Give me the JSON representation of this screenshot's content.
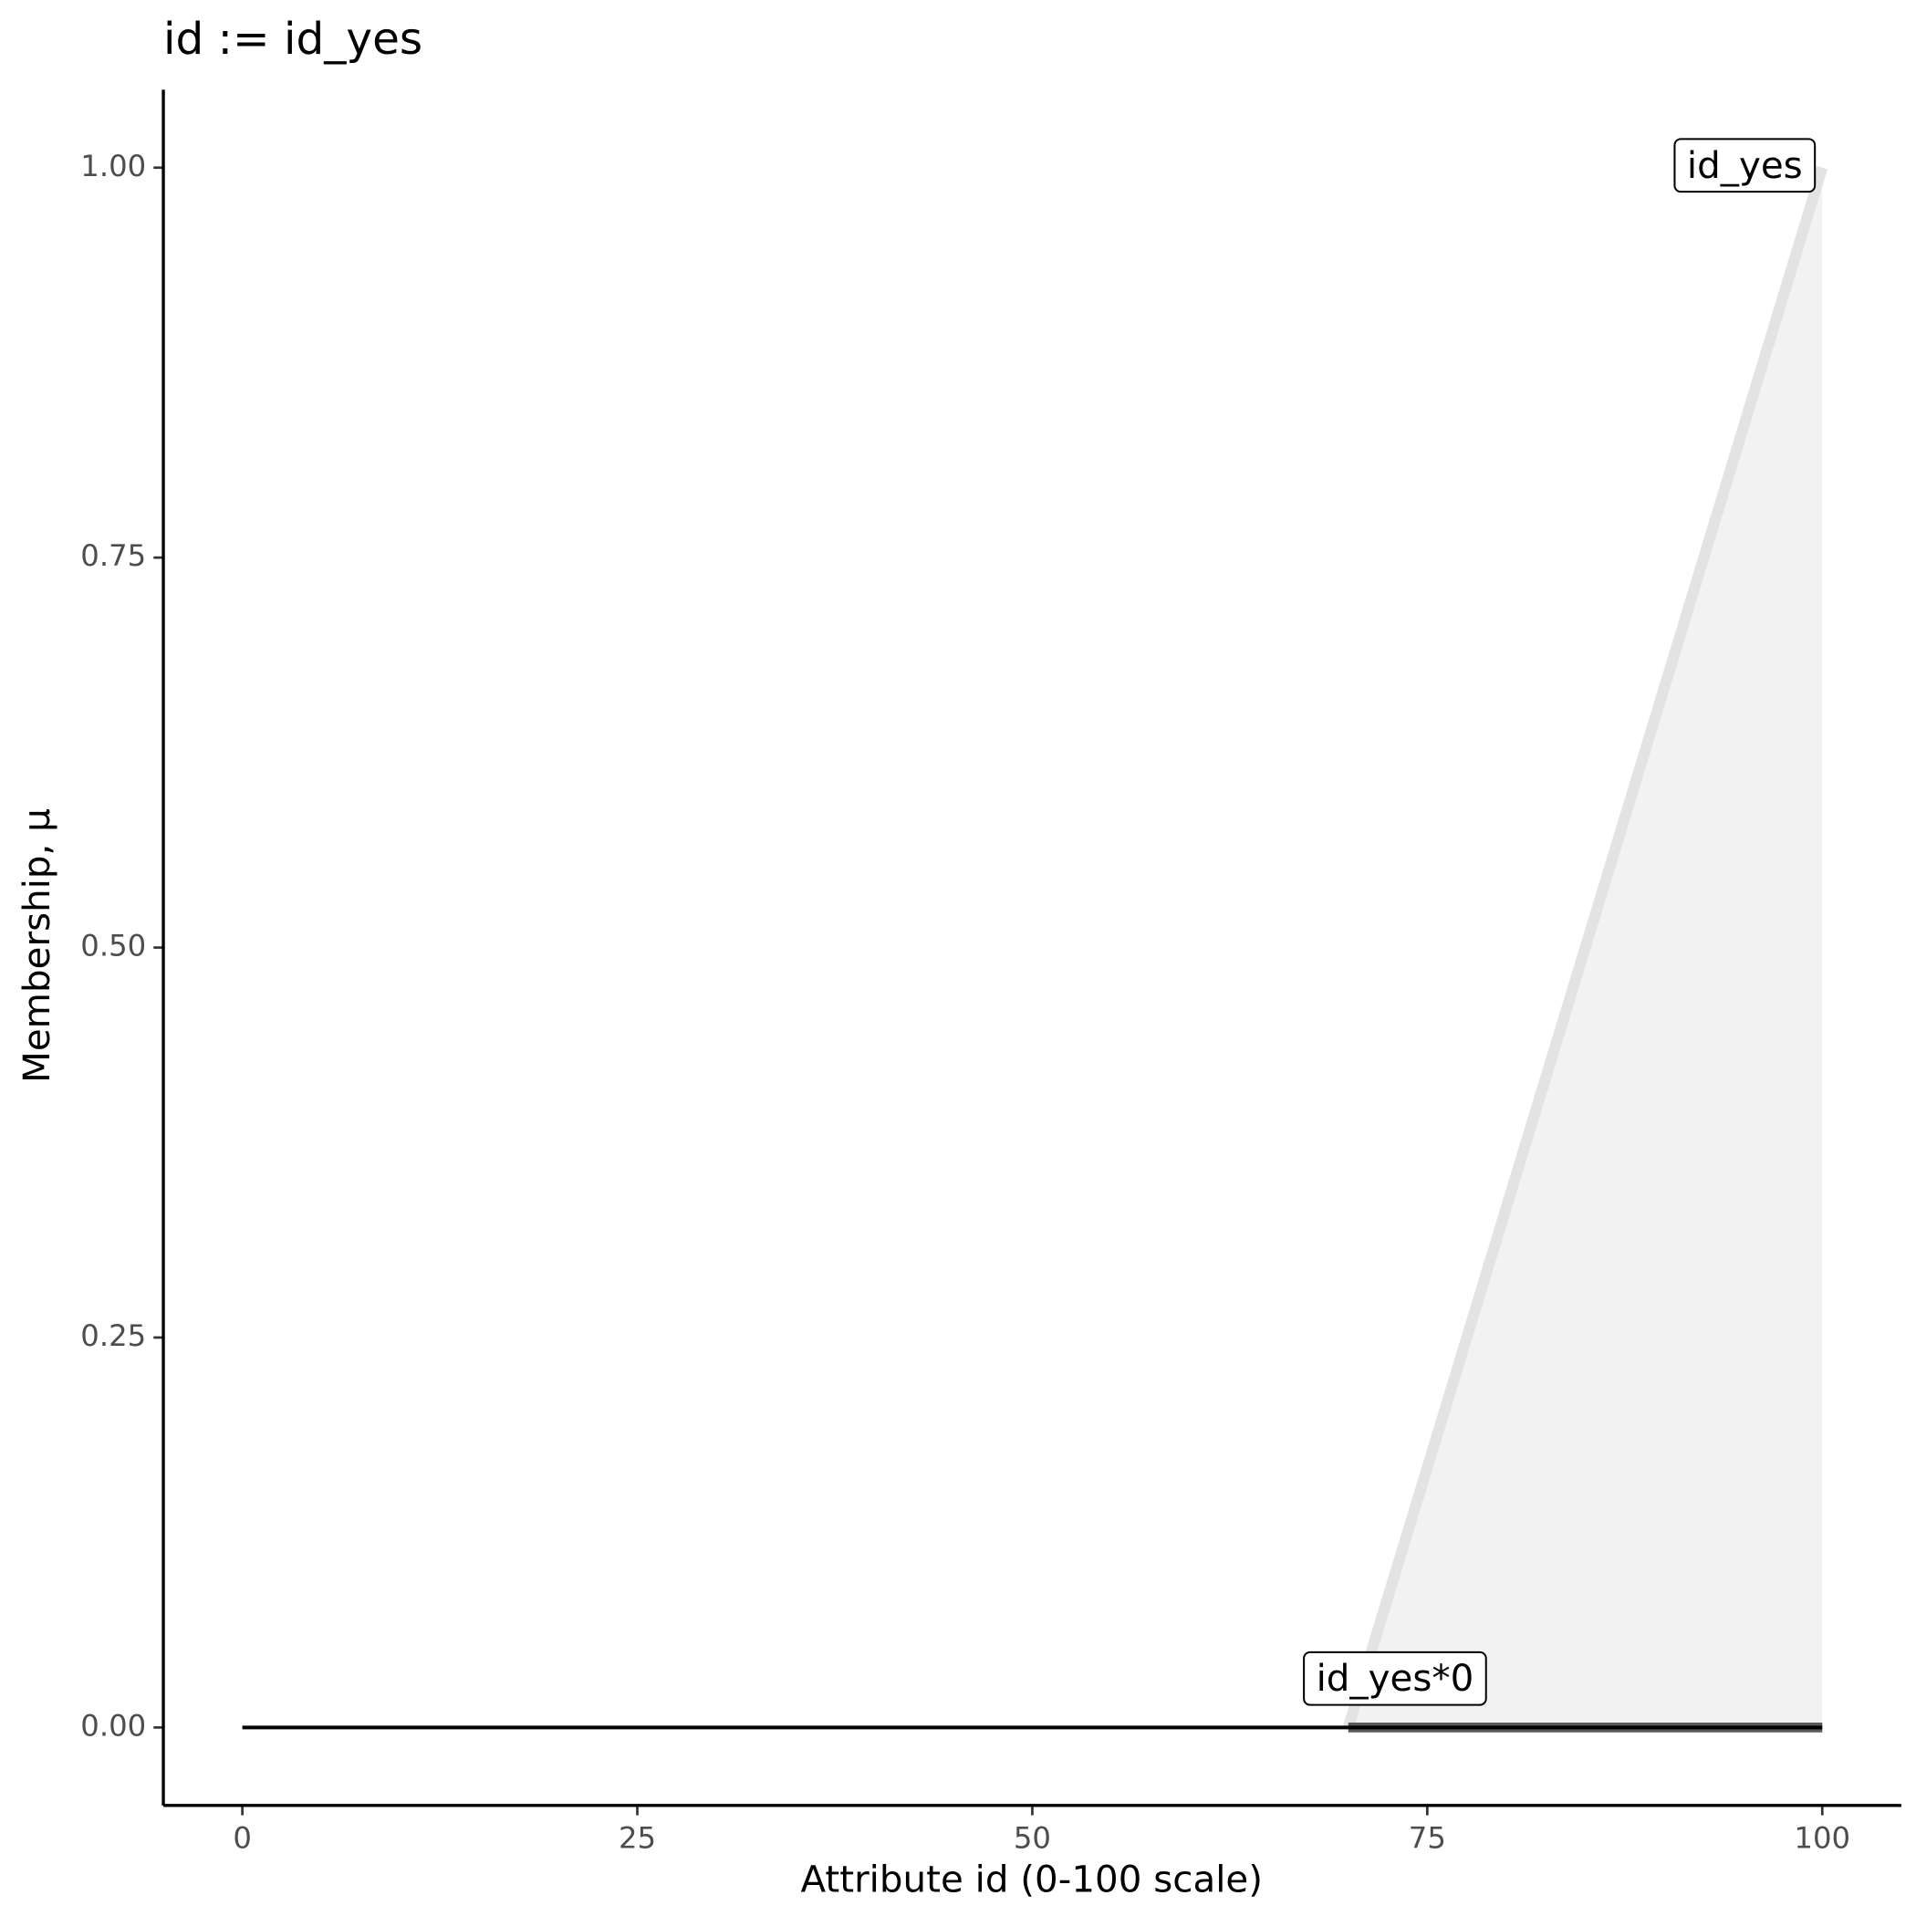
{
  "chart_data": {
    "type": "line",
    "title": "id := id_yes",
    "x_label": "Attribute id (0-100 scale)",
    "y_label": "Membership, μ",
    "xlim": [
      -5,
      105
    ],
    "ylim": [
      -0.05,
      1.05
    ],
    "xticks": [
      0,
      25,
      50,
      75,
      100
    ],
    "yticks": [
      {
        "value": 0,
        "label": "0.00"
      },
      {
        "value": 0.25,
        "label": "0.25"
      },
      {
        "value": 0.5,
        "label": "0.50"
      },
      {
        "value": 0.75,
        "label": "0.75"
      },
      {
        "value": 1,
        "label": "1.00"
      }
    ],
    "series": [
      {
        "name": "id_yes",
        "color": "#e3e3e3",
        "fill": "#f2f2f2",
        "x": [
          70,
          100
        ],
        "values": [
          0,
          1
        ]
      },
      {
        "name": "id_yes*0",
        "color": "#595959",
        "x": [
          70,
          100
        ],
        "values": [
          0,
          0
        ]
      },
      {
        "color": "#000000",
        "x": [
          0,
          100
        ],
        "values": [
          0,
          0
        ]
      }
    ]
  }
}
